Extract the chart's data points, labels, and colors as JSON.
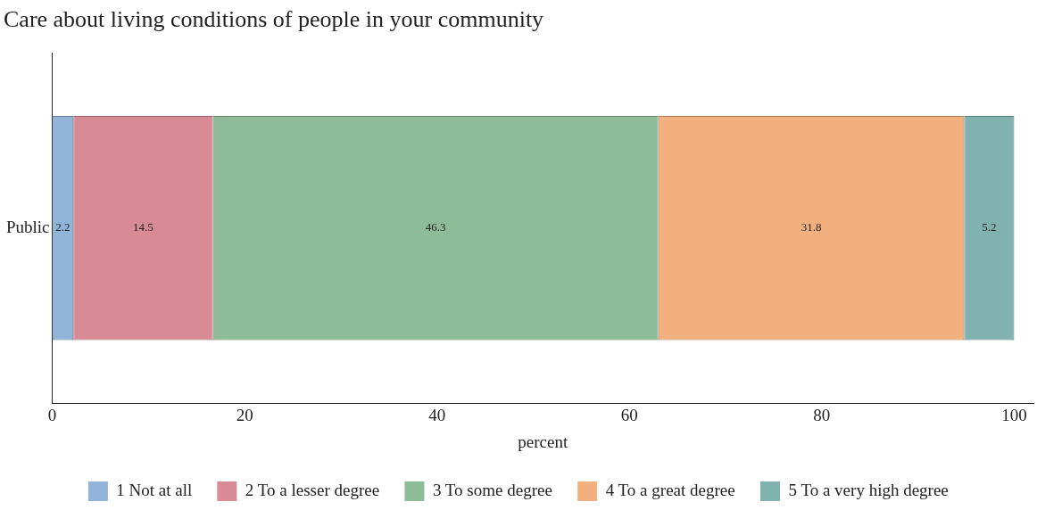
{
  "chart_data": {
    "type": "bar",
    "orientation": "horizontal",
    "stacked": true,
    "title": "Care about living conditions of people in your community",
    "xlabel": "percent",
    "categories": [
      "Public"
    ],
    "series": [
      {
        "name": "1 Not at all",
        "color": "#92b4d8",
        "values": [
          2.2
        ]
      },
      {
        "name": "2 To a lesser degree",
        "color": "#d98b95",
        "values": [
          14.5
        ]
      },
      {
        "name": "3 To some degree",
        "color": "#8fbc98",
        "values": [
          46.3
        ]
      },
      {
        "name": "4 To a great degree",
        "color": "#f2b07f",
        "values": [
          31.8
        ]
      },
      {
        "name": "5 To a very high degree",
        "color": "#80b3b0",
        "values": [
          5.2
        ]
      }
    ],
    "xlim": [
      0,
      102
    ],
    "xticks": [
      0,
      20,
      40,
      60,
      80,
      100
    ],
    "data_labels": true,
    "legend": "bottom",
    "grid": false
  }
}
